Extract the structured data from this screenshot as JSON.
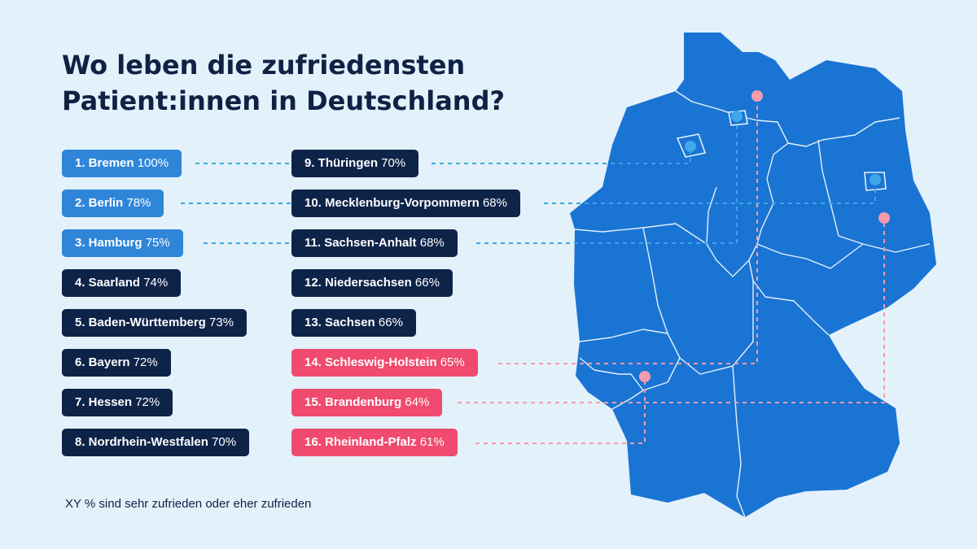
{
  "title_lines": [
    "Wo leben die zufriedensten",
    "Patient:innen in Deutschland?"
  ],
  "footnote": "XY % sind sehr zufrieden oder eher zufrieden",
  "colors": {
    "background": "#e3f1fb",
    "map": "#1a74d4",
    "top_tier": "#2f86d9",
    "mid_tier": "#0e2348",
    "low_tier": "#f04a6e",
    "top_line": "#3aa6e6",
    "low_line": "#f49bb0"
  },
  "ranking": [
    {
      "rank_name": "1. Bremen",
      "value": "100%",
      "tier": "top"
    },
    {
      "rank_name": "2. Berlin",
      "value": "78%",
      "tier": "top"
    },
    {
      "rank_name": "3. Hamburg",
      "value": "75%",
      "tier": "top"
    },
    {
      "rank_name": "4. Saarland",
      "value": "74%",
      "tier": "mid"
    },
    {
      "rank_name": "5. Baden-Württemberg",
      "value": "73%",
      "tier": "mid"
    },
    {
      "rank_name": "6. Bayern",
      "value": "72%",
      "tier": "mid"
    },
    {
      "rank_name": "7. Hessen",
      "value": "72%",
      "tier": "mid"
    },
    {
      "rank_name": "8. Nordrhein-Westfalen",
      "value": "70%",
      "tier": "mid"
    },
    {
      "rank_name": "9. Thüringen",
      "value": "70%",
      "tier": "mid"
    },
    {
      "rank_name": "10. Mecklenburg-Vorpommern",
      "value": "68%",
      "tier": "mid"
    },
    {
      "rank_name": "11. Sachsen-Anhalt",
      "value": "68%",
      "tier": "mid"
    },
    {
      "rank_name": "12. Niedersachsen",
      "value": "66%",
      "tier": "mid"
    },
    {
      "rank_name": "13. Sachsen",
      "value": "66%",
      "tier": "mid"
    },
    {
      "rank_name": "14. Schleswig-Holstein",
      "value": "65%",
      "tier": "low"
    },
    {
      "rank_name": "15. Brandenburg",
      "value": "64%",
      "tier": "low"
    },
    {
      "rank_name": "16. Rheinland-Pfalz",
      "value": "61%",
      "tier": "low"
    }
  ]
}
